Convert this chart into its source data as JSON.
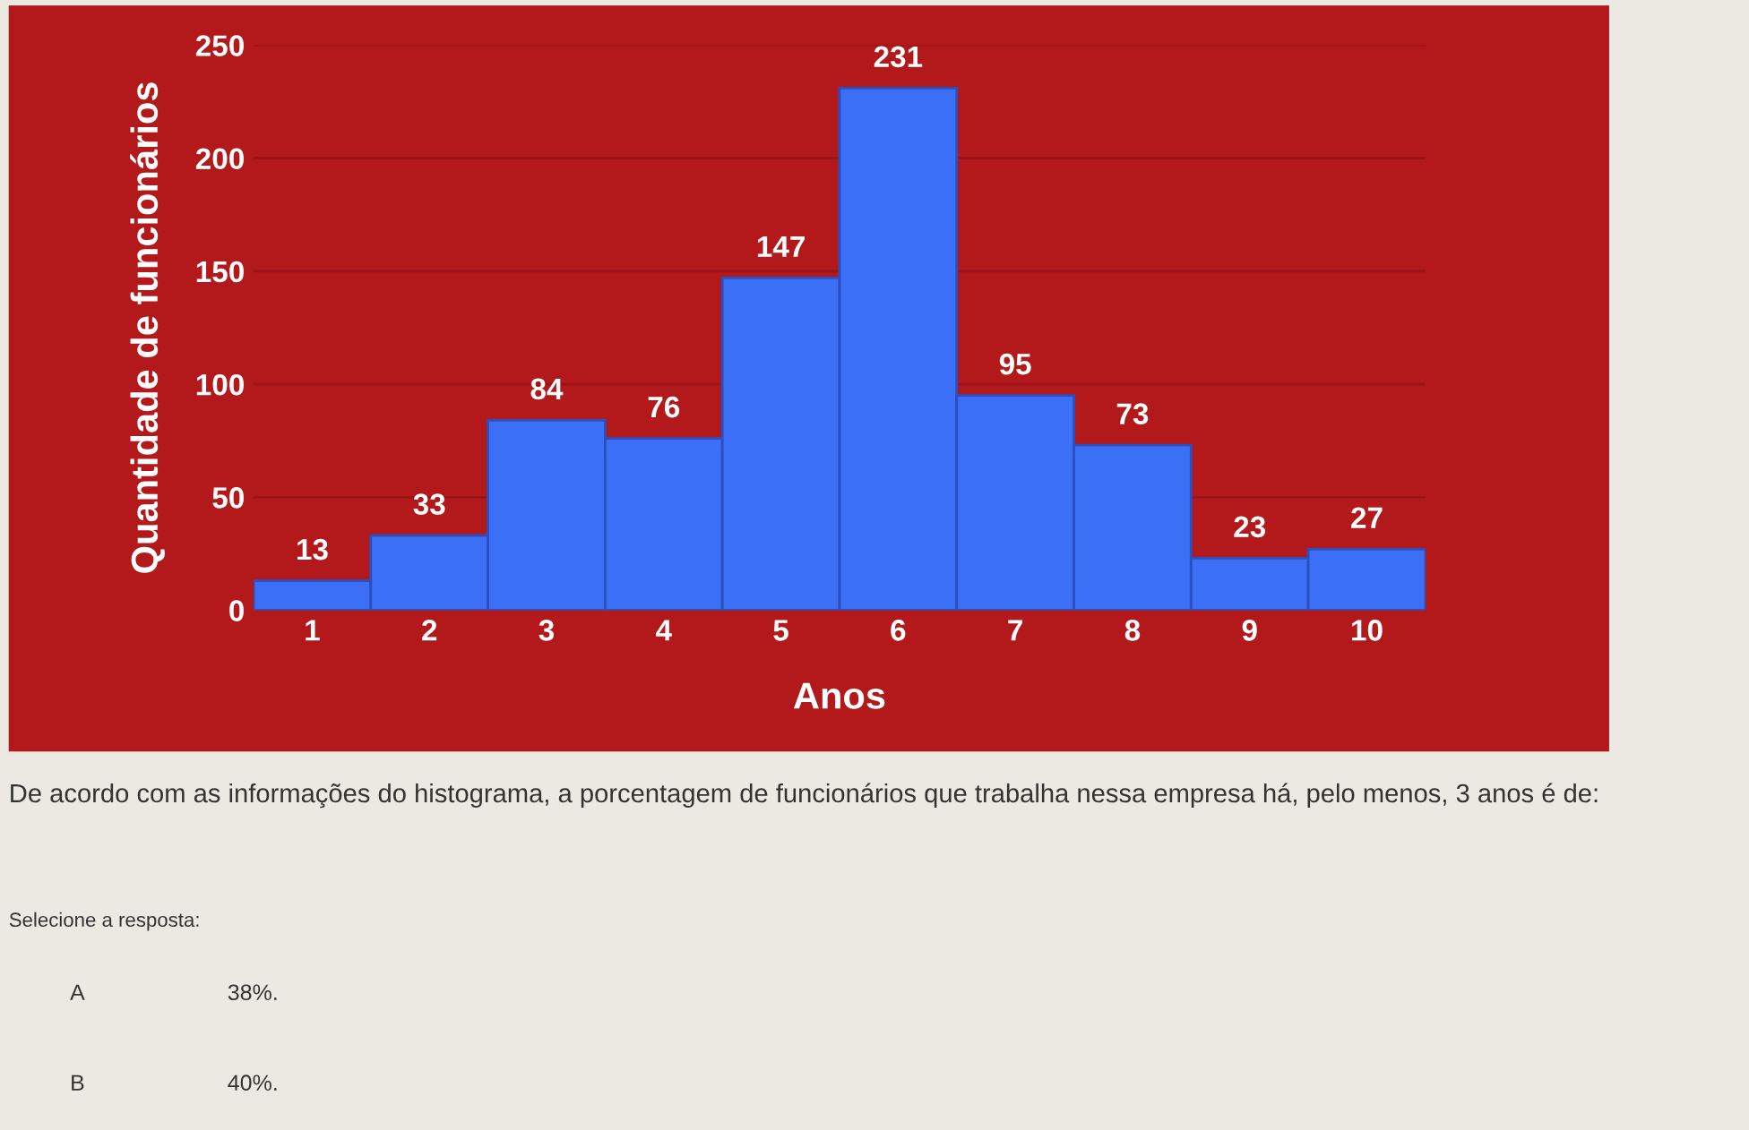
{
  "chart_data": {
    "type": "bar",
    "xlabel": "Anos",
    "ylabel": "Quantidade de funcionários",
    "categories": [
      "1",
      "2",
      "3",
      "4",
      "5",
      "6",
      "7",
      "8",
      "9",
      "10"
    ],
    "values": [
      13,
      33,
      84,
      76,
      147,
      231,
      95,
      73,
      23,
      27
    ],
    "color": "#3b6ff5",
    "data_labels": true,
    "ylim": [
      0,
      250
    ],
    "yticks": [
      0,
      50,
      100,
      150,
      200,
      250
    ],
    "grid": "y",
    "annotations": [
      "De acordo com as informações do histograma, a porcentagem de funcionários que trabalha nessa empresa há, pelo menos, 3 anos é de:",
      "Selecione a resposta:",
      "A",
      "38%.",
      "B",
      "40%."
    ]
  }
}
